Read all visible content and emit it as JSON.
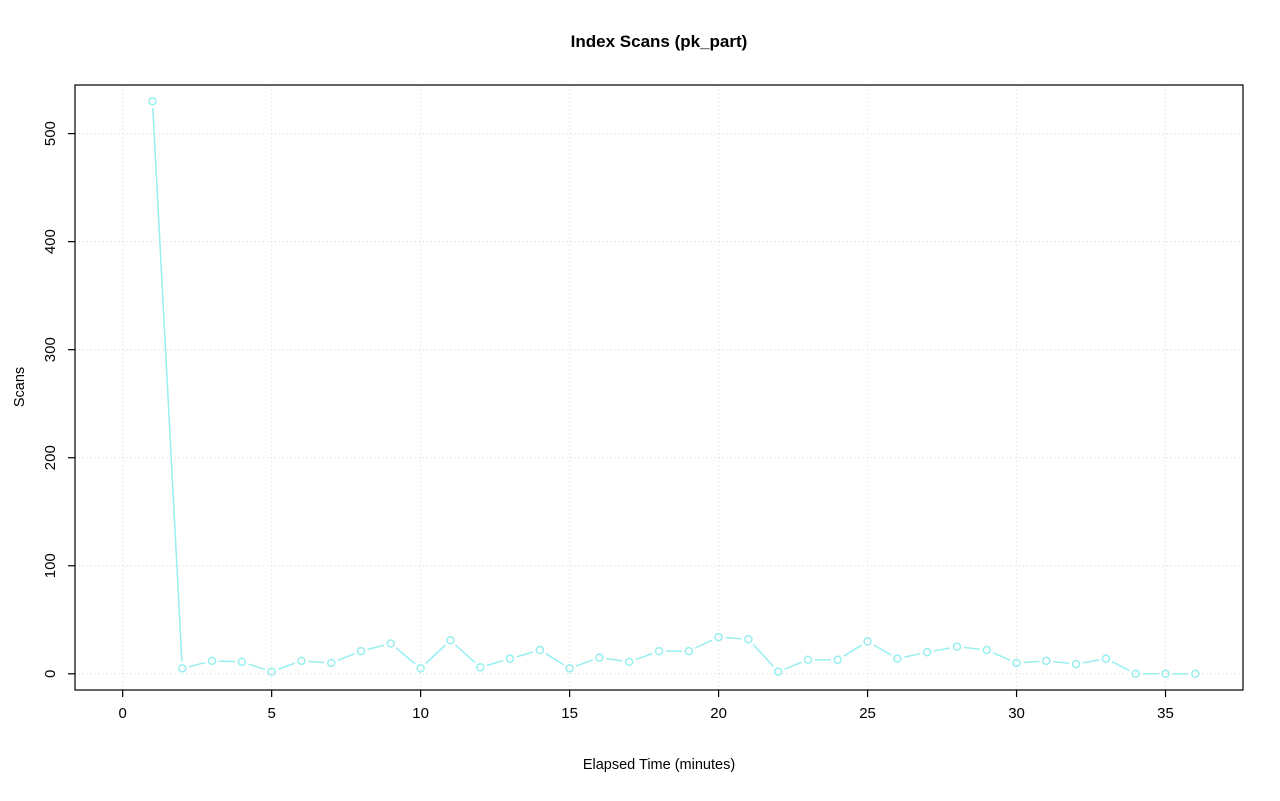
{
  "chart_data": {
    "type": "line",
    "title": "Index Scans (pk_part)",
    "xlabel": "Elapsed Time (minutes)",
    "ylabel": "Scans",
    "x": [
      1,
      2,
      3,
      4,
      5,
      6,
      7,
      8,
      9,
      10,
      11,
      12,
      13,
      14,
      15,
      16,
      17,
      18,
      19,
      20,
      21,
      22,
      23,
      24,
      25,
      26,
      27,
      28,
      29,
      30,
      31,
      32,
      33,
      34,
      35,
      36
    ],
    "y": [
      530,
      5,
      12,
      11,
      2,
      12,
      10,
      21,
      28,
      5,
      31,
      6,
      14,
      22,
      5,
      15,
      11,
      21,
      21,
      34,
      32,
      2,
      13,
      13,
      30,
      14,
      20,
      25,
      22,
      10,
      12,
      9,
      14,
      0,
      0,
      0
    ],
    "xticks": [
      0,
      5,
      10,
      15,
      20,
      25,
      30,
      35
    ],
    "yticks": [
      0,
      100,
      200,
      300,
      400,
      500
    ],
    "xlim": [
      -1.6,
      37.6
    ],
    "ylim": [
      -15,
      545
    ],
    "grid": "dotted",
    "legend": "none",
    "marker": "open-circle",
    "colors": {
      "series": "#97EFEF",
      "grid": "#D8D8D8",
      "axis": "#000000",
      "text": "#000000"
    }
  }
}
